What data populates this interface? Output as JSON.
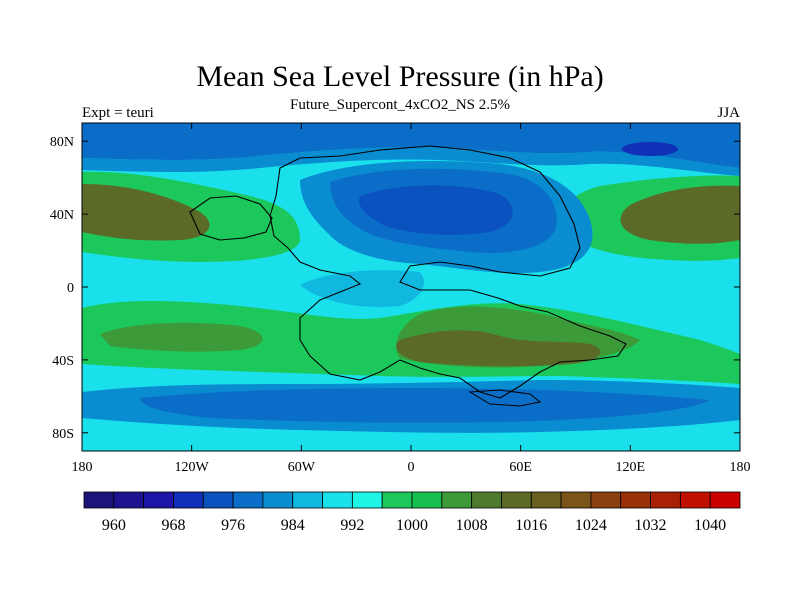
{
  "title": "Mean Sea Level Pressure (in hPa)",
  "subtitle": "Future_Supercont_4xCO2_NS 2.5%",
  "left_label": "Expt = teuri",
  "right_label": "JJA",
  "map": {
    "lon_ticks": [
      "180",
      "120W",
      "60W",
      "0",
      "60E",
      "120E",
      "180"
    ],
    "lat_ticks": [
      "80N",
      "40N",
      "0",
      "40S",
      "80S"
    ]
  },
  "colorbar": {
    "levels": [
      "960",
      "968",
      "976",
      "984",
      "992",
      "1000",
      "1008",
      "1016",
      "1024",
      "1032",
      "1040"
    ],
    "colors": [
      "#1c1478",
      "#1f1490",
      "#1e16a8",
      "#1030b8",
      "#0a52c0",
      "#0a6ec8",
      "#0a8cd0",
      "#10b8e0",
      "#1ae0ec",
      "#1ef5e4",
      "#1cc85c",
      "#18c050",
      "#3c9a38",
      "#4d7a2c",
      "#5c6a28",
      "#6a5e20",
      "#7a5418",
      "#8a4010",
      "#9a3008",
      "#aa2004",
      "#c01000",
      "#cc0000"
    ]
  }
}
